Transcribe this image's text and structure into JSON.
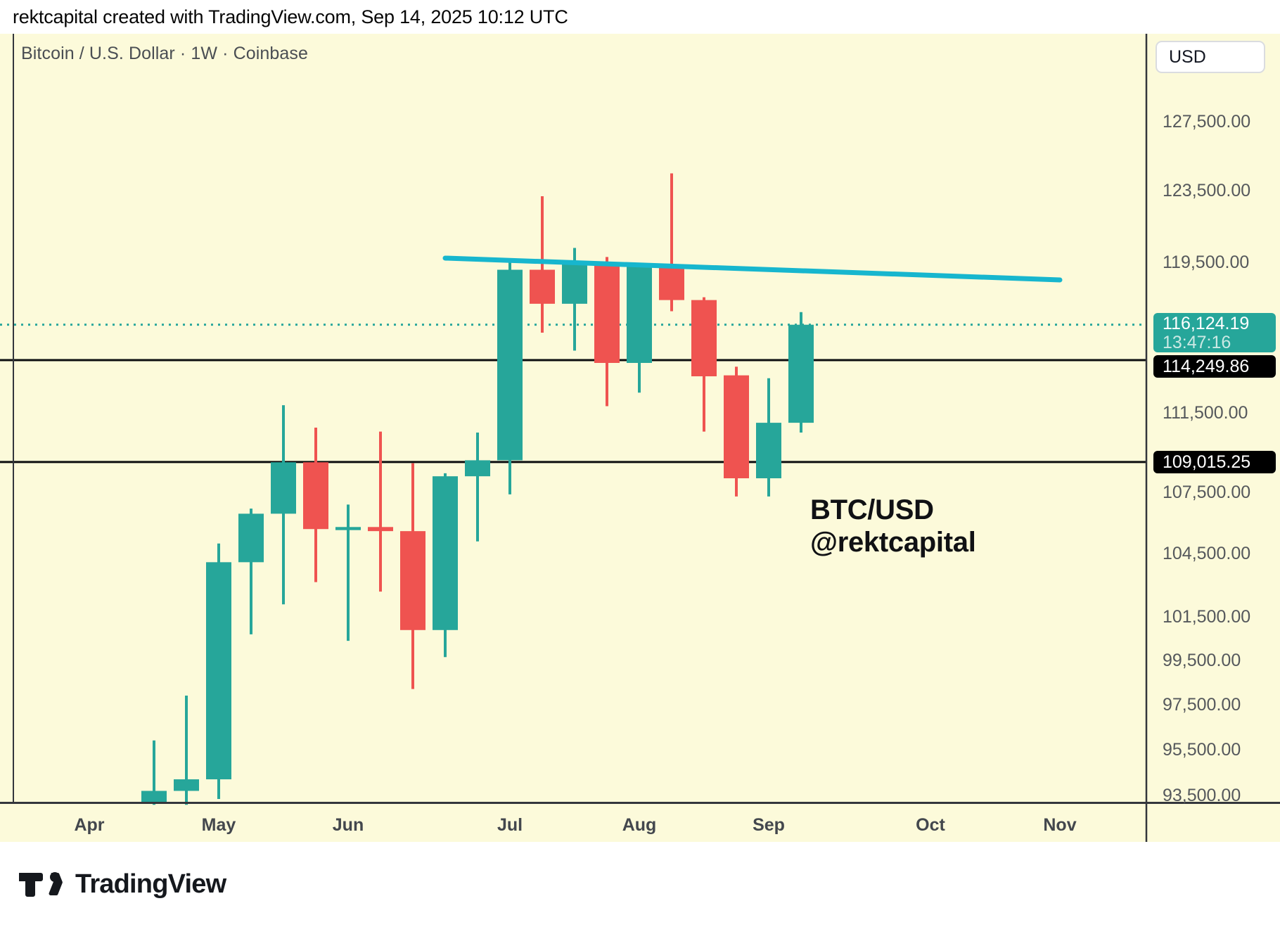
{
  "header": {
    "credit": "rektcapital created with TradingView.com, Sep 14, 2025 10:12 UTC"
  },
  "chart": {
    "title": "Bitcoin / U.S. Dollar · 1W · Coinbase",
    "annotation": {
      "line1": "BTC/USD",
      "line2": "@rektcapital"
    }
  },
  "axis": {
    "currency": "USD",
    "current": {
      "price_label": "116,124.19",
      "countdown": "13:47:16"
    },
    "line_badges": [
      {
        "label": "114,249.86"
      },
      {
        "label": "109,015.25"
      }
    ]
  },
  "footer": {
    "brand": "TradingView"
  },
  "colors": {
    "background": "#FCFADA",
    "bull": "#26A69A",
    "bear": "#EF5350",
    "trendline": "#17B6CE",
    "current_line": "#2AA79C",
    "current_badge": "#26A69A",
    "line_badge": "#000000",
    "axis_frame": "#33363C",
    "price_line": "#0C0D0F"
  },
  "chart_data": {
    "type": "candlestick",
    "symbol": "BTC/USD",
    "interval": "1W",
    "exchange": "Coinbase",
    "grid": false,
    "scale": "log",
    "visible_price_range": [
      92600,
      133000
    ],
    "candles_ohlc": [
      [
        "Apr 21",
        93150,
        95900,
        93100,
        93700
      ],
      [
        "Apr 28",
        93700,
        97900,
        93100,
        94200
      ],
      [
        "May 5",
        94200,
        105000,
        93350,
        104100
      ],
      [
        "May 12",
        104100,
        106700,
        100700,
        106450
      ],
      [
        "May 19",
        106450,
        111900,
        102100,
        109000
      ],
      [
        "May 26",
        109000,
        110750,
        103150,
        105700
      ],
      [
        "Jun 2",
        105650,
        106900,
        100400,
        105800
      ],
      [
        "Jun 9",
        105800,
        110550,
        102700,
        105600
      ],
      [
        "Jun 16",
        105600,
        108950,
        98200,
        100900
      ],
      [
        "Jun 23",
        100900,
        108450,
        99650,
        108300
      ],
      [
        "Jun 30",
        108300,
        110500,
        105100,
        109100
      ],
      [
        "Jul 7",
        109100,
        119550,
        107400,
        119100
      ],
      [
        "Jul 14",
        119100,
        123200,
        115700,
        117250
      ],
      [
        "Jul 21",
        117250,
        120300,
        114750,
        119400
      ],
      [
        "Jul 28",
        119400,
        119800,
        111850,
        114100
      ],
      [
        "Aug 4",
        114100,
        119400,
        112550,
        119350
      ],
      [
        "Aug 11",
        119300,
        124500,
        116850,
        117450
      ],
      [
        "Aug 18",
        117450,
        117600,
        110550,
        113400
      ],
      [
        "Aug 25",
        113450,
        113900,
        107300,
        108200
      ],
      [
        "Sep 1",
        108200,
        113300,
        107300,
        111000
      ],
      [
        "Sep 8",
        111000,
        116800,
        110500,
        116124.19
      ]
    ],
    "price_lines": [
      {
        "price": 116124.19,
        "style": "dotted",
        "role": "current"
      },
      {
        "price": 114249.86,
        "style": "solid"
      },
      {
        "price": 109015.25,
        "style": "solid"
      }
    ],
    "trendline": {
      "from_week": "Jun 23",
      "from_index": 9,
      "from_price": 119740,
      "to_week": "Nov 3",
      "to_index": 28,
      "to_price": 118545
    },
    "y_ticks": [
      {
        "price": 127500,
        "label": "127,500.00"
      },
      {
        "price": 123500,
        "label": "123,500.00"
      },
      {
        "price": 119500,
        "label": "119,500.00"
      },
      {
        "price": 111500,
        "label": "111,500.00"
      },
      {
        "price": 107500,
        "label": "107,500.00"
      },
      {
        "price": 104500,
        "label": "104,500.00"
      },
      {
        "price": 101500,
        "label": "101,500.00"
      },
      {
        "price": 99500,
        "label": "99,500.00"
      },
      {
        "price": 97500,
        "label": "97,500.00"
      },
      {
        "price": 95500,
        "label": "95,500.00"
      },
      {
        "price": 93500,
        "label": "93,500.00"
      }
    ],
    "x_months": [
      {
        "label": "Apr",
        "week_index": -2
      },
      {
        "label": "May",
        "week_index": 2
      },
      {
        "label": "Jun",
        "week_index": 6
      },
      {
        "label": "Jul",
        "week_index": 11
      },
      {
        "label": "Aug",
        "week_index": 15
      },
      {
        "label": "Sep",
        "week_index": 19
      },
      {
        "label": "Oct",
        "week_index": 24
      },
      {
        "label": "Nov",
        "week_index": 28
      }
    ]
  }
}
